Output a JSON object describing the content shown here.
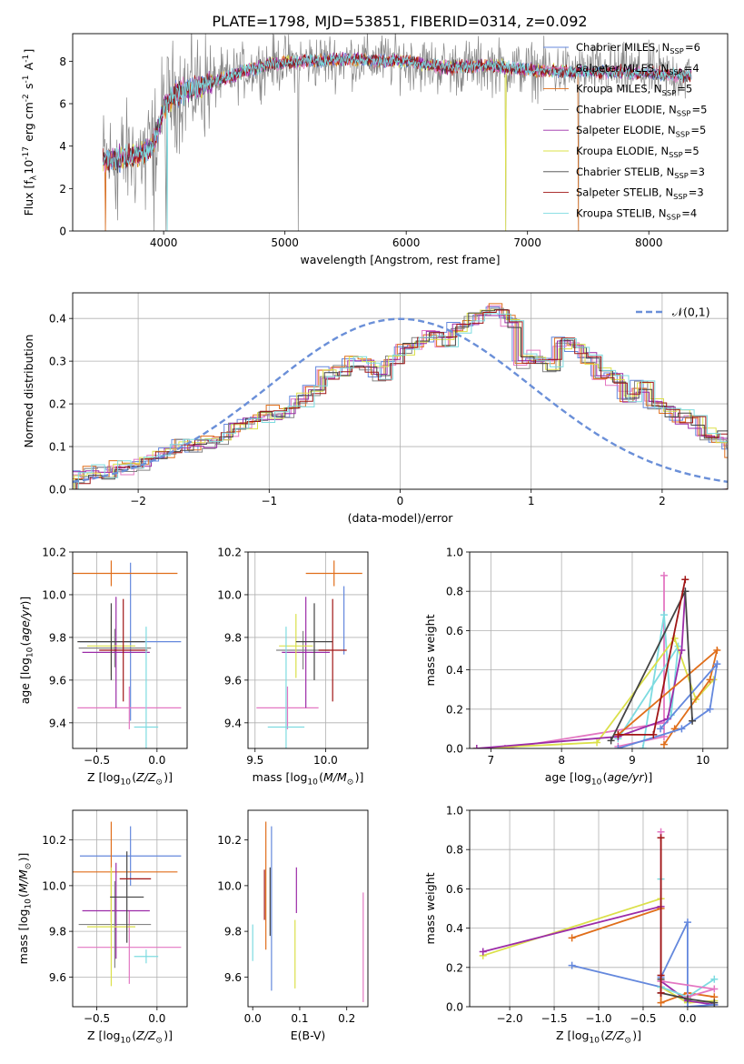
{
  "figure": {
    "title": "PLATE=1798, MJD=53851, FIBERID=0314, z=0.092"
  },
  "colors": {
    "Chabrier MILES": "#6488dd",
    "Salpeter MILES": "#e377c2",
    "Kroupa MILES": "#e06e1a",
    "Chabrier ELODIE": "#858585",
    "Salpeter ELODIE": "#9c2ca8",
    "Kroupa ELODIE": "#dbe04a",
    "Chabrier STELIB": "#444444",
    "Salpeter STELIB": "#a01515",
    "Kroupa STELIB": "#7ddbe0",
    "gauss": "#6a8fd8"
  },
  "chart_data": [
    {
      "id": "spectrum",
      "type": "line",
      "xlabel": "wavelength [Angstrom, rest frame]",
      "ylabel": "Flux [f$_\\lambda$10$^{-17}$ erg cm$^{-2}$ s$^{-1}$ A$^{-1}$]",
      "xlim": [
        3250,
        8650
      ],
      "ylim": [
        0,
        9.3
      ],
      "xticks": [
        4000,
        5000,
        6000,
        7000,
        8000
      ],
      "yticks": [
        0,
        2,
        4,
        6,
        8
      ],
      "grid": false,
      "legend_position": "right",
      "data_range": [
        3500,
        8350
      ],
      "continuum": [
        [
          3500,
          3.3
        ],
        [
          3650,
          3.4
        ],
        [
          3800,
          3.6
        ],
        [
          3900,
          3.9
        ],
        [
          3960,
          4.9
        ],
        [
          4000,
          5.8
        ],
        [
          4100,
          6.5
        ],
        [
          4300,
          6.8
        ],
        [
          4500,
          7.2
        ],
        [
          4700,
          7.6
        ],
        [
          4900,
          7.9
        ],
        [
          5200,
          8.0
        ],
        [
          5500,
          8.1
        ],
        [
          6000,
          8.0
        ],
        [
          6300,
          7.7
        ],
        [
          6700,
          7.8
        ],
        [
          7000,
          7.6
        ],
        [
          7400,
          7.5
        ],
        [
          7800,
          7.5
        ],
        [
          8350,
          7.3
        ]
      ],
      "noise_model": 0.25,
      "noise_data": 1.1,
      "noise_data_blue": 2.2,
      "blue_cut": 4400,
      "drops": [
        [
          3520,
          0
        ],
        [
          3620,
          0.5
        ],
        [
          3850,
          1.0
        ],
        [
          3920,
          0
        ],
        [
          4020,
          0
        ],
        [
          5110,
          0
        ],
        [
          6820,
          0
        ],
        [
          7420,
          0
        ]
      ],
      "legend": [
        {
          "label": "Chabrier MILES, N$_{SSP}$=6",
          "model": "Chabrier MILES"
        },
        {
          "label": "Salpeter MILES, N$_{SSP}$=4",
          "model": "Salpeter MILES"
        },
        {
          "label": "Kroupa MILES, N$_{SSP}$=5",
          "model": "Kroupa MILES"
        },
        {
          "label": "Chabrier ELODIE, N$_{SSP}$=5",
          "model": "Chabrier ELODIE"
        },
        {
          "label": "Salpeter ELODIE, N$_{SSP}$=5",
          "model": "Salpeter ELODIE"
        },
        {
          "label": "Kroupa ELODIE, N$_{SSP}$=5",
          "model": "Kroupa ELODIE"
        },
        {
          "label": "Chabrier STELIB, N$_{SSP}$=3",
          "model": "Chabrier STELIB"
        },
        {
          "label": "Salpeter STELIB, N$_{SSP}$=3",
          "model": "Salpeter STELIB"
        },
        {
          "label": "Kroupa STELIB, N$_{SSP}$=4",
          "model": "Kroupa STELIB"
        }
      ]
    },
    {
      "id": "residuals",
      "type": "bar",
      "xlabel": "(data-model)/error",
      "ylabel": "Normed distribution",
      "xlim": [
        -2.5,
        2.5
      ],
      "ylim": [
        0,
        0.46
      ],
      "xticks": [
        -2,
        -1,
        0,
        1,
        2
      ],
      "yticks": [
        0.0,
        0.1,
        0.2,
        0.3,
        0.4
      ],
      "grid": true,
      "bin_width": 0.1,
      "legend_position": "top-right",
      "gauss_label": "$\\mathcal{N}(0,1)$",
      "bins_center": [
        0.03,
        0.04,
        0.04,
        0.05,
        0.05,
        0.06,
        0.08,
        0.09,
        0.1,
        0.1,
        0.11,
        0.12,
        0.14,
        0.15,
        0.17,
        0.18,
        0.18,
        0.21,
        0.23,
        0.27,
        0.28,
        0.3,
        0.29,
        0.27,
        0.3,
        0.33,
        0.34,
        0.36,
        0.35,
        0.38,
        0.4,
        0.41,
        0.42,
        0.39,
        0.3,
        0.31,
        0.29,
        0.34,
        0.33,
        0.31,
        0.27,
        0.26,
        0.22,
        0.24,
        0.2,
        0.18,
        0.17,
        0.16,
        0.13,
        0.12,
        0.09,
        0.09,
        0.08,
        0.07,
        0.07,
        0.05,
        0.05,
        0.04,
        0.04,
        0.03
      ]
    },
    {
      "id": "age_vs_Z",
      "type": "errorbar",
      "xlabel": "Z [log$_{10}$($Z/Z_\\odot$)]",
      "ylabel": "age  [log$_{10}$($age/yr$)]",
      "xlim": [
        -0.7,
        0.25
      ],
      "ylim": [
        9.28,
        10.2
      ],
      "xticks": [
        -0.5,
        0.0
      ],
      "yticks": [
        9.4,
        9.6,
        9.8,
        10.0,
        10.2
      ],
      "grid": true,
      "points": [
        {
          "model": "Chabrier MILES",
          "x": -0.22,
          "xerr": 0.42,
          "y": 9.78,
          "yerr": 0.37
        },
        {
          "model": "Salpeter MILES",
          "x": -0.23,
          "xerr": 0.43,
          "y": 9.47,
          "yerr": 0.1
        },
        {
          "model": "Kroupa MILES",
          "x": -0.38,
          "xerr": 0.55,
          "y": 10.1,
          "yerr": 0.06
        },
        {
          "model": "Chabrier ELODIE",
          "x": -0.35,
          "xerr": 0.3,
          "y": 9.75,
          "yerr": 0.09
        },
        {
          "model": "Salpeter ELODIE",
          "x": -0.34,
          "xerr": 0.28,
          "y": 9.73,
          "yerr": 0.26
        },
        {
          "model": "Kroupa ELODIE",
          "x": -0.38,
          "xerr": 0.2,
          "y": 9.76,
          "yerr": 0.14
        },
        {
          "model": "Chabrier STELIB",
          "x": -0.38,
          "xerr": 0.28,
          "y": 9.78,
          "yerr": 0.18
        },
        {
          "model": "Salpeter STELIB",
          "x": -0.28,
          "xerr": 0.2,
          "y": 9.74,
          "yerr": 0.24
        },
        {
          "model": "Kroupa STELIB",
          "x": -0.09,
          "xerr": 0.1,
          "y": 9.38,
          "yerr": 0.47
        }
      ]
    },
    {
      "id": "age_vs_mass",
      "type": "errorbar",
      "xlabel": "mass [log$_{10}$($M/M_\\odot$)]",
      "ylabel": "",
      "xlim": [
        9.45,
        10.3
      ],
      "ylim": [
        9.28,
        10.2
      ],
      "xticks": [
        9.5,
        10.0
      ],
      "yticks": [
        9.4,
        9.6,
        9.8,
        10.0,
        10.2
      ],
      "grid": true,
      "points": [
        {
          "model": "Chabrier MILES",
          "x": 10.13,
          "xerr": 0.0,
          "y": 9.88,
          "yerr": 0.16
        },
        {
          "model": "Salpeter MILES",
          "x": 9.73,
          "xerr": 0.22,
          "y": 9.47,
          "yerr": 0.1
        },
        {
          "model": "Kroupa MILES",
          "x": 10.06,
          "xerr": 0.2,
          "y": 10.1,
          "yerr": 0.06
        },
        {
          "model": "Chabrier ELODIE",
          "x": 9.84,
          "xerr": 0.19,
          "y": 9.74,
          "yerr": 0.09
        },
        {
          "model": "Salpeter ELODIE",
          "x": 9.86,
          "xerr": 0.17,
          "y": 9.73,
          "yerr": 0.26
        },
        {
          "model": "Kroupa ELODIE",
          "x": 9.79,
          "xerr": 0.12,
          "y": 9.76,
          "yerr": 0.15
        },
        {
          "model": "Chabrier STELIB",
          "x": 9.92,
          "xerr": 0.13,
          "y": 9.78,
          "yerr": 0.18
        },
        {
          "model": "Salpeter STELIB",
          "x": 10.05,
          "xerr": 0.1,
          "y": 9.74,
          "yerr": 0.24
        },
        {
          "model": "Kroupa STELIB",
          "x": 9.72,
          "xerr": 0.13,
          "y": 9.38,
          "yerr": 0.47
        }
      ]
    },
    {
      "id": "weight_vs_age",
      "type": "line",
      "xlabel": "age  [log$_{10}$($age/yr$)]",
      "ylabel": "mass weight",
      "xlim": [
        6.7,
        10.35
      ],
      "ylim": [
        0,
        1.0
      ],
      "xticks": [
        7,
        8,
        9,
        10
      ],
      "yticks": [
        0.0,
        0.2,
        0.4,
        0.6,
        0.8,
        1.0
      ],
      "grid": true,
      "series": [
        {
          "model": "Salpeter MILES",
          "x": [
            8.8,
            9.45,
            9.45,
            9.45,
            7.2
          ],
          "y": [
            0.01,
            0.06,
            0.88,
            0.13,
            0.0
          ]
        },
        {
          "model": "Kroupa STELIB",
          "x": [
            9.15,
            9.45,
            9.55,
            9.65,
            8.8
          ],
          "y": [
            0.0,
            0.68,
            0.17,
            0.52,
            0.05
          ]
        },
        {
          "model": "Kroupa ELODIE",
          "x": [
            6.8,
            8.5,
            9.6,
            9.9,
            10.15
          ],
          "y": [
            0.0,
            0.03,
            0.56,
            0.25,
            0.35
          ]
        },
        {
          "model": "Salpeter ELODIE",
          "x": [
            6.8,
            8.8,
            9.5,
            9.7,
            9.75
          ],
          "y": [
            0.0,
            0.06,
            0.15,
            0.5,
            0.8
          ]
        },
        {
          "model": "Kroupa MILES",
          "x": [
            9.45,
            9.6,
            10.1,
            10.2,
            8.8
          ],
          "y": [
            0.02,
            0.1,
            0.35,
            0.5,
            0.07
          ]
        },
        {
          "model": "Chabrier MILES",
          "x": [
            8.8,
            9.7,
            10.1,
            10.2,
            9.4
          ],
          "y": [
            0.0,
            0.1,
            0.2,
            0.43,
            0.1
          ]
        },
        {
          "model": "Chabrier STELIB",
          "x": [
            8.7,
            9.75,
            9.85
          ],
          "y": [
            0.04,
            0.8,
            0.14
          ]
        },
        {
          "model": "Salpeter STELIB",
          "x": [
            8.8,
            9.3,
            9.75
          ],
          "y": [
            0.07,
            0.07,
            0.86
          ]
        }
      ]
    },
    {
      "id": "mass_vs_Z",
      "type": "errorbar",
      "xlabel": "Z [log$_{10}$($Z/Z_\\odot$)]",
      "ylabel": "mass [log$_{10}$($M/M_\\odot$)]",
      "xlim": [
        -0.7,
        0.25
      ],
      "ylim": [
        9.47,
        10.33
      ],
      "xticks": [
        -0.5,
        0.0
      ],
      "yticks": [
        9.6,
        9.8,
        10.0,
        10.2
      ],
      "grid": true,
      "points": [
        {
          "model": "Chabrier MILES",
          "x": -0.22,
          "xerr": 0.42,
          "y": 10.13,
          "yerr": 0.13
        },
        {
          "model": "Salpeter MILES",
          "x": -0.23,
          "xerr": 0.43,
          "y": 9.73,
          "yerr": 0.16
        },
        {
          "model": "Kroupa MILES",
          "x": -0.38,
          "xerr": 0.55,
          "y": 10.06,
          "yerr": 0.22
        },
        {
          "model": "Chabrier ELODIE",
          "x": -0.35,
          "xerr": 0.3,
          "y": 9.83,
          "yerr": 0.19
        },
        {
          "model": "Salpeter ELODIE",
          "x": -0.34,
          "xerr": 0.28,
          "y": 9.89,
          "yerr": 0.21
        },
        {
          "model": "Kroupa ELODIE",
          "x": -0.38,
          "xerr": 0.2,
          "y": 9.82,
          "yerr": 0.26
        },
        {
          "model": "Chabrier STELIB",
          "x": -0.25,
          "xerr": 0.14,
          "y": 9.95,
          "yerr": 0.2
        },
        {
          "model": "Salpeter STELIB",
          "x": -0.18,
          "xerr": 0.13,
          "y": 10.03,
          "yerr": 0.0
        },
        {
          "model": "Kroupa STELIB",
          "x": -0.09,
          "xerr": 0.1,
          "y": 9.69,
          "yerr": 0.03
        }
      ]
    },
    {
      "id": "mass_vs_EBV",
      "type": "errorbar",
      "xlabel": "E(B-V)",
      "ylabel": "",
      "xlim": [
        -0.01,
        0.245
      ],
      "ylim": [
        9.47,
        10.33
      ],
      "xticks": [
        0.0,
        0.1,
        0.2
      ],
      "yticks": [
        9.6,
        9.8,
        10.0,
        10.2
      ],
      "grid": false,
      "points": [
        {
          "model": "Chabrier MILES",
          "x": 0.04,
          "xerr": 0.0,
          "y": 9.9,
          "yerr": 0.36
        },
        {
          "model": "Salpeter MILES",
          "x": 0.235,
          "xerr": 0.0,
          "y": 9.73,
          "yerr": 0.24
        },
        {
          "model": "Kroupa MILES",
          "x": 0.028,
          "xerr": 0.0,
          "y": 10.0,
          "yerr": 0.28
        },
        {
          "model": "Salpeter ELODIE",
          "x": 0.093,
          "xerr": 0.0,
          "y": 9.98,
          "yerr": 0.1
        },
        {
          "model": "Kroupa ELODIE",
          "x": 0.09,
          "xerr": 0.0,
          "y": 9.7,
          "yerr": 0.15
        },
        {
          "model": "Chabrier STELIB",
          "x": 0.037,
          "xerr": 0.0,
          "y": 9.93,
          "yerr": 0.15
        },
        {
          "model": "Salpeter STELIB",
          "x": 0.025,
          "xerr": 0.0,
          "y": 9.96,
          "yerr": 0.11
        },
        {
          "model": "Kroupa STELIB",
          "x": 0.0,
          "xerr": 0.0,
          "y": 9.75,
          "yerr": 0.08
        }
      ]
    },
    {
      "id": "weight_vs_Z",
      "type": "line",
      "xlabel": "Z [log$_{10}$($Z/Z_\\odot$)]",
      "ylabel": "mass weight",
      "xlim": [
        -2.45,
        0.45
      ],
      "ylim": [
        0,
        1.0
      ],
      "xticks": [
        -2.0,
        -1.5,
        -1.0,
        -0.5,
        0.0
      ],
      "yticks": [
        0.0,
        0.2,
        0.4,
        0.6,
        0.8,
        1.0
      ],
      "grid": true,
      "series": [
        {
          "model": "Kroupa ELODIE",
          "x": [
            -2.3,
            -0.3,
            -0.3,
            0.0,
            0.3
          ],
          "y": [
            0.26,
            0.55,
            0.1,
            0.02,
            0.03
          ]
        },
        {
          "model": "Salpeter ELODIE",
          "x": [
            -2.3,
            -0.3,
            -0.3,
            0.0,
            0.3
          ],
          "y": [
            0.28,
            0.51,
            0.13,
            0.03,
            0.01
          ]
        },
        {
          "model": "Kroupa MILES",
          "x": [
            -1.3,
            -0.3,
            -0.3,
            0.0,
            0.3
          ],
          "y": [
            0.35,
            0.5,
            0.02,
            0.07,
            0.05
          ]
        },
        {
          "model": "Chabrier MILES",
          "x": [
            -1.3,
            -0.3,
            -0.3,
            0.0,
            0.0,
            0.3
          ],
          "y": [
            0.21,
            0.1,
            0.15,
            0.43,
            0.0,
            0.01
          ]
        },
        {
          "model": "Kroupa STELIB",
          "x": [
            -0.3,
            -0.3,
            0.0,
            0.3
          ],
          "y": [
            0.65,
            0.1,
            0.05,
            0.14
          ]
        },
        {
          "model": "Salpeter MILES",
          "x": [
            -0.3,
            -0.3,
            0.3,
            0.0
          ],
          "y": [
            0.89,
            0.13,
            0.09,
            0.05
          ]
        },
        {
          "model": "Chabrier STELIB",
          "x": [
            -0.3,
            -0.3,
            0.0,
            0.3
          ],
          "y": [
            0.14,
            0.07,
            0.04,
            0.02
          ]
        },
        {
          "model": "Salpeter STELIB",
          "x": [
            -0.3,
            -0.3,
            -0.3
          ],
          "y": [
            0.86,
            0.16,
            0.07
          ]
        }
      ]
    }
  ]
}
